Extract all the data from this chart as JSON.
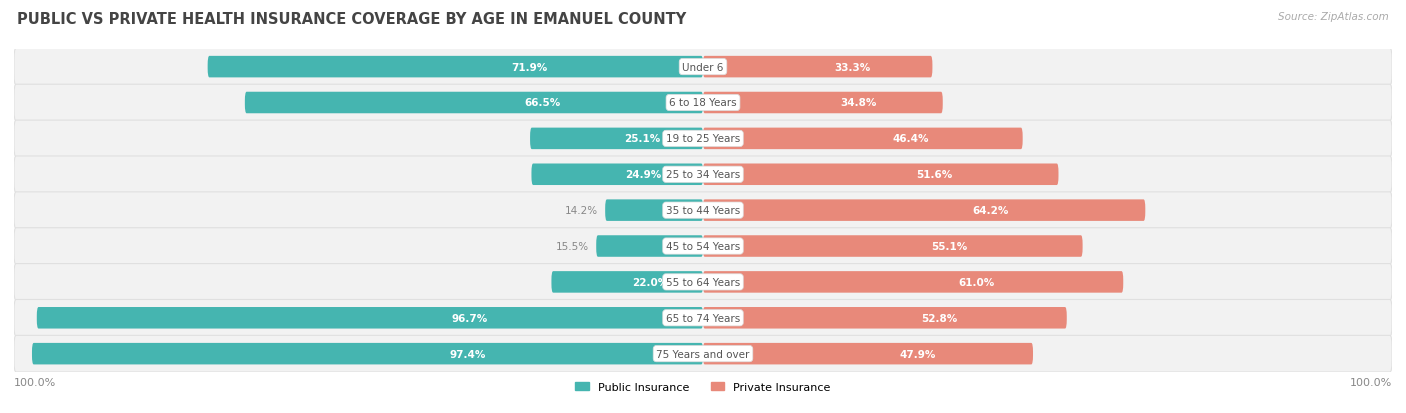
{
  "title": "PUBLIC VS PRIVATE HEALTH INSURANCE COVERAGE BY AGE IN EMANUEL COUNTY",
  "source": "Source: ZipAtlas.com",
  "categories": [
    "Under 6",
    "6 to 18 Years",
    "19 to 25 Years",
    "25 to 34 Years",
    "35 to 44 Years",
    "45 to 54 Years",
    "55 to 64 Years",
    "65 to 74 Years",
    "75 Years and over"
  ],
  "public_values": [
    71.9,
    66.5,
    25.1,
    24.9,
    14.2,
    15.5,
    22.0,
    96.7,
    97.4
  ],
  "private_values": [
    33.3,
    34.8,
    46.4,
    51.6,
    64.2,
    55.1,
    61.0,
    52.8,
    47.9
  ],
  "public_color": "#45b5b0",
  "private_color": "#e8897a",
  "row_bg_color": "#f2f2f2",
  "row_border_color": "#e0e0e0",
  "label_color_inside": "#ffffff",
  "label_color_outside": "#888888",
  "category_label_color": "#555555",
  "max_value": 100.0,
  "title_fontsize": 10.5,
  "source_fontsize": 7.5,
  "bar_label_fontsize": 7.5,
  "cat_label_fontsize": 7.5,
  "legend_fontsize": 8,
  "axis_label_fontsize": 8,
  "inside_threshold": 18
}
